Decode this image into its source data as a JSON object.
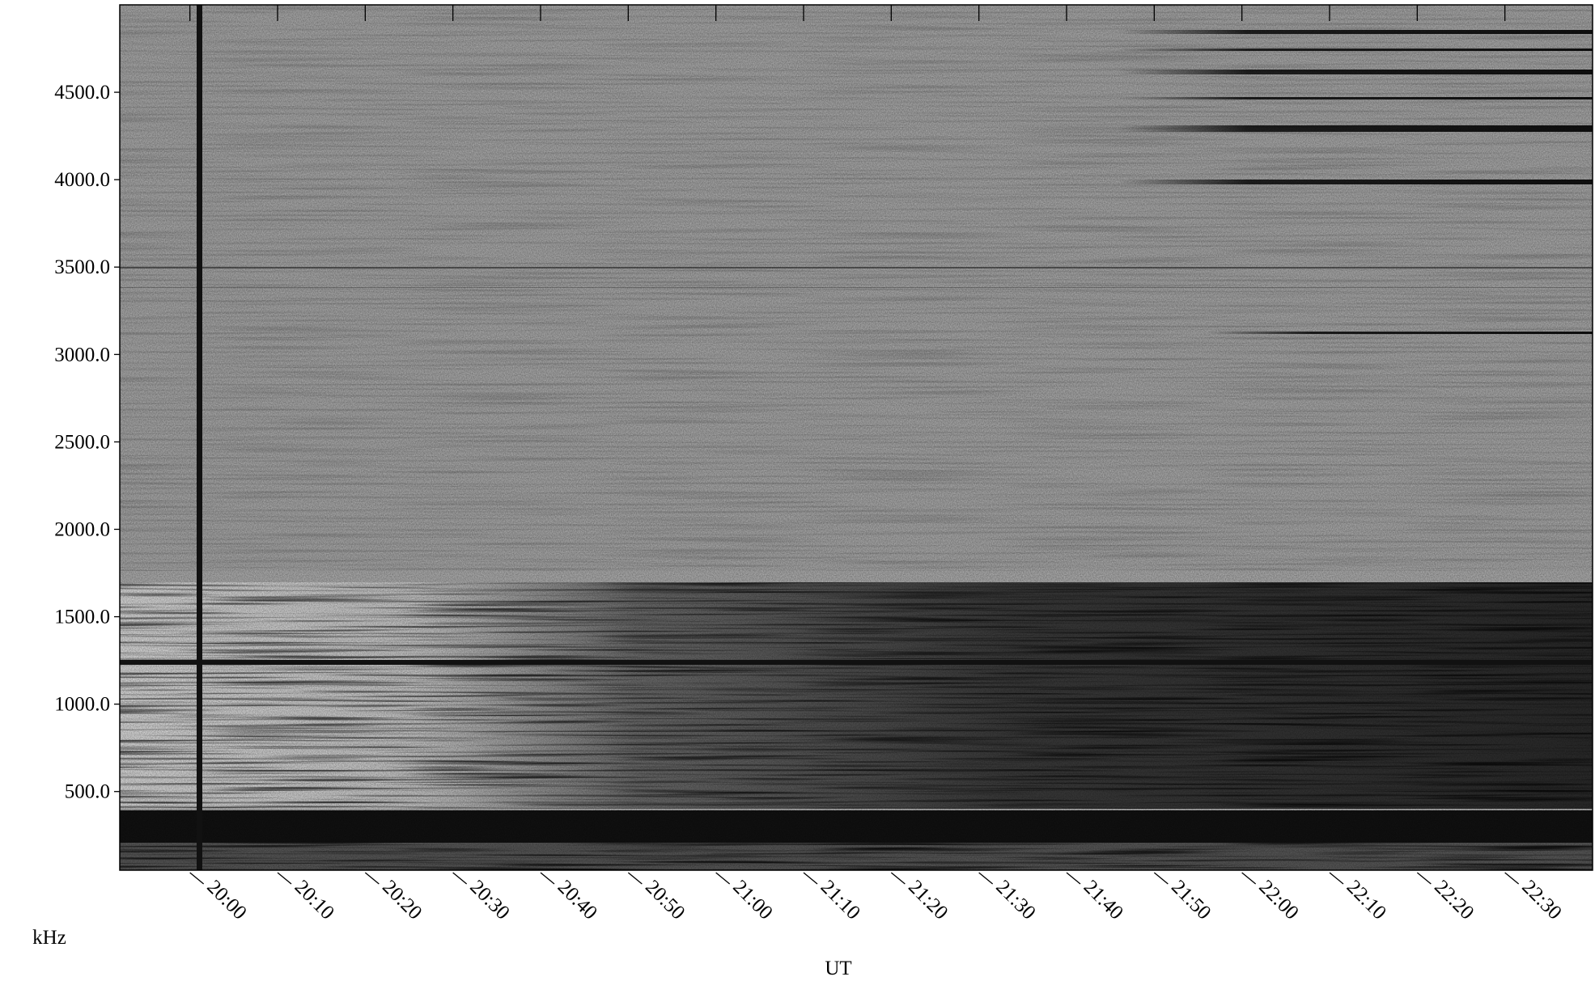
{
  "chart_data": {
    "type": "spectrogram",
    "xlabel": "UT",
    "ylabel": "kHz",
    "xlim": [
      "19:52",
      "22:40"
    ],
    "xticks": [
      "20:00",
      "20:10",
      "20:20",
      "20:30",
      "20:40",
      "20:50",
      "21:00",
      "21:10",
      "21:20",
      "21:30",
      "21:40",
      "21:50",
      "22:00",
      "22:10",
      "22:20",
      "22:30"
    ],
    "ylim": [
      50,
      5000
    ],
    "yticks": [
      {
        "value": 500,
        "label": "500.0"
      },
      {
        "value": 1000,
        "label": "1000.0"
      },
      {
        "value": 1500,
        "label": "1500.0"
      },
      {
        "value": 2000,
        "label": "2000.0"
      },
      {
        "value": 2500,
        "label": "2500.0"
      },
      {
        "value": 3000,
        "label": "3000.0"
      },
      {
        "value": 3500,
        "label": "3500.0"
      },
      {
        "value": 4000,
        "label": "4000.0"
      },
      {
        "value": 4500,
        "label": "4500.0"
      }
    ]
  }
}
